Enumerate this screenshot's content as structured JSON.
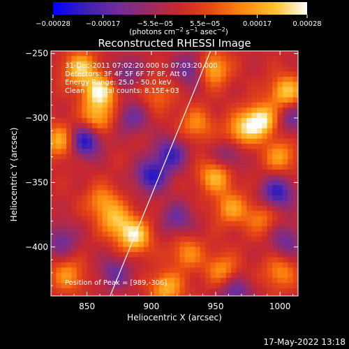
{
  "chart_data": {
    "type": "heatmap",
    "title": "Reconstructed RHESSI Image",
    "xlabel": "Heliocentric X (arcsec)",
    "ylabel": "Heliocentric Y (arcsec)",
    "xlim": [
      822,
      1014
    ],
    "ylim": [
      -438,
      -248
    ],
    "xticks": [
      850,
      900,
      950,
      1000
    ],
    "xtick_labels": [
      "850",
      "900",
      "950",
      "1000"
    ],
    "yticks": [
      -250,
      -300,
      -350,
      -400
    ],
    "ytick_labels": [
      "−250",
      "−300",
      "−350",
      "−400"
    ],
    "colorbar": {
      "range": [
        -0.00028,
        0.00028
      ],
      "ticks": [
        -0.00028,
        -0.00017,
        -5.5e-05,
        5.5e-05,
        0.00017,
        0.00028
      ],
      "tick_labels": [
        "−0.00028",
        "−0.00017",
        "−5.5e−05",
        "5.5e−05",
        "0.00017",
        "0.00028"
      ],
      "units_base": "(photons cm",
      "units_sup1": "−2",
      "units_mid": " s",
      "units_sup2": "−1",
      "units_mid2": " asec",
      "units_sup3": "−2",
      "units_end": ")",
      "colormap": [
        "#0000ff",
        "#3a1fb5",
        "#6e2d9c",
        "#9a2b63",
        "#c8282e",
        "#e84a12",
        "#ff8a10",
        "#ffc230",
        "#ffffff"
      ]
    },
    "limb_line": {
      "x": [
        868,
        946
      ],
      "y": [
        -438,
        -248
      ]
    },
    "hotspots": [
      {
        "x": 845,
        "y": -262,
        "v": 0.00022
      },
      {
        "x": 860,
        "y": -280,
        "v": 0.00026
      },
      {
        "x": 858,
        "y": -300,
        "v": 0.00018
      },
      {
        "x": 947,
        "y": -262,
        "v": 0.00022
      },
      {
        "x": 935,
        "y": -305,
        "v": 0.00014
      },
      {
        "x": 985,
        "y": -302,
        "v": 0.00028
      },
      {
        "x": 970,
        "y": -310,
        "v": 0.00018
      },
      {
        "x": 1005,
        "y": -280,
        "v": 0.00022
      },
      {
        "x": 1000,
        "y": -330,
        "v": 0.00016
      },
      {
        "x": 830,
        "y": -318,
        "v": 0.0002
      },
      {
        "x": 873,
        "y": -380,
        "v": 0.00018
      },
      {
        "x": 887,
        "y": -392,
        "v": 0.00024
      },
      {
        "x": 862,
        "y": -365,
        "v": 0.00015
      },
      {
        "x": 950,
        "y": -345,
        "v": 0.0002
      },
      {
        "x": 962,
        "y": -370,
        "v": 0.00016
      },
      {
        "x": 912,
        "y": -432,
        "v": 0.00019
      },
      {
        "x": 928,
        "y": -405,
        "v": 0.00014
      },
      {
        "x": 955,
        "y": -418,
        "v": 0.00015
      },
      {
        "x": 1000,
        "y": -420,
        "v": 0.00014
      },
      {
        "x": 835,
        "y": -422,
        "v": 0.00015
      },
      {
        "x": 985,
        "y": -378,
        "v": 0.00012
      },
      {
        "x": 905,
        "y": -282,
        "v": 0.0001
      }
    ],
    "coldspots": [
      {
        "x": 848,
        "y": -318,
        "v": -0.00026
      },
      {
        "x": 900,
        "y": -345,
        "v": -0.00022
      },
      {
        "x": 915,
        "y": -328,
        "v": -0.0002
      },
      {
        "x": 932,
        "y": -262,
        "v": -0.00018
      },
      {
        "x": 998,
        "y": -358,
        "v": -0.00022
      },
      {
        "x": 920,
        "y": -378,
        "v": -0.00014
      },
      {
        "x": 872,
        "y": -420,
        "v": -0.00014
      },
      {
        "x": 965,
        "y": -435,
        "v": -0.00016
      },
      {
        "x": 1010,
        "y": -300,
        "v": -0.00014
      },
      {
        "x": 960,
        "y": -330,
        "v": -0.00012
      },
      {
        "x": 880,
        "y": -265,
        "v": -0.00012
      },
      {
        "x": 1005,
        "y": -395,
        "v": -0.00014
      },
      {
        "x": 885,
        "y": -300,
        "v": -0.00014
      },
      {
        "x": 830,
        "y": -395,
        "v": -0.00014
      }
    ],
    "annotations": [
      "31-Dec-2011 07:02:20.000 to 07:03:20.000",
      "Detectors: 3F 4F 5F 6F 7F 8F, Att 0",
      "Energy Range: 25.0 - 50.0 keV",
      "Clean      Total counts: 8.15E+03"
    ],
    "peak_label": "Position of Peak = [989,-306]"
  },
  "timestamp": "17-May-2022 13:18"
}
